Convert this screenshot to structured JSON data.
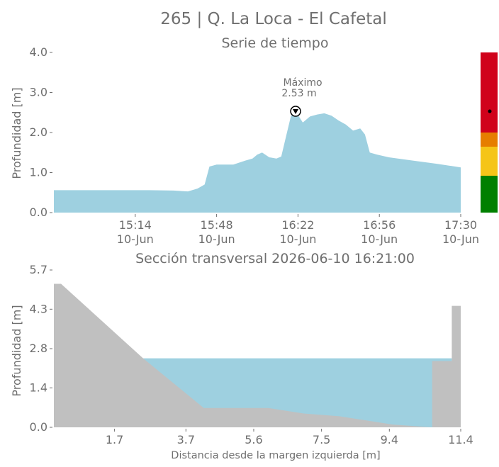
{
  "title": "265 | Q. La Loca - El Cafetal",
  "timeseries": {
    "subtitle": "Serie de tiempo",
    "ylabel": "Profundidad [m]",
    "yticks": [
      "0.0",
      "1.0",
      "2.0",
      "3.0",
      "4.0"
    ],
    "ytick_values": [
      0,
      1,
      2,
      3,
      4
    ],
    "xticks": [
      {
        "time": "15:14",
        "date": "10-Jun"
      },
      {
        "time": "15:48",
        "date": "10-Jun"
      },
      {
        "time": "16:22",
        "date": "10-Jun"
      },
      {
        "time": "16:56",
        "date": "10-Jun"
      },
      {
        "time": "17:30",
        "date": "10-Jun"
      }
    ],
    "max_label_line1": "Máximo",
    "max_label_line2": "2.53 m",
    "fill_color": "#9ed0e0"
  },
  "level_bar": {
    "colors": [
      "#008000",
      "#f5c518",
      "#e67e00",
      "#d0021b"
    ],
    "current_level": 2.53
  },
  "section": {
    "subtitle": "Sección transversal 2026-06-10 16:21:00",
    "ylabel": "Profundidad [m]",
    "xlabel": "Distancia desde la margen izquierda [m]",
    "yticks": [
      "0.0",
      "1.4",
      "2.8",
      "4.3",
      "5.7"
    ],
    "ytick_values": [
      0,
      1.43,
      2.85,
      4.28,
      5.7
    ],
    "xticks": [
      "1.7",
      "3.7",
      "5.6",
      "7.5",
      "9.4",
      "11.4"
    ],
    "xtick_values": [
      1.7,
      3.7,
      5.6,
      7.5,
      9.4,
      11.4
    ],
    "water_level": 2.5,
    "ground_color": "#c0c0c0",
    "water_color": "#9ed0e0"
  },
  "chart_data": [
    {
      "type": "area",
      "title": "Serie de tiempo",
      "ylabel": "Profundidad [m]",
      "ylim": [
        0,
        4
      ],
      "x_range": [
        "14:40",
        "17:30"
      ],
      "x": [
        "14:40",
        "14:50",
        "15:00",
        "15:10",
        "15:20",
        "15:30",
        "15:36",
        "15:40",
        "15:43",
        "15:45",
        "15:48",
        "15:55",
        "16:00",
        "16:03",
        "16:05",
        "16:07",
        "16:10",
        "16:13",
        "16:15",
        "16:17",
        "16:19",
        "16:21",
        "16:24",
        "16:27",
        "16:30",
        "16:33",
        "16:36",
        "16:39",
        "16:42",
        "16:45",
        "16:48",
        "16:50",
        "16:52",
        "16:55",
        "17:00",
        "17:10",
        "17:20",
        "17:30"
      ],
      "values": [
        0.56,
        0.56,
        0.56,
        0.56,
        0.56,
        0.55,
        0.53,
        0.6,
        0.7,
        1.15,
        1.2,
        1.2,
        1.3,
        1.35,
        1.45,
        1.5,
        1.38,
        1.35,
        1.4,
        1.9,
        2.4,
        2.53,
        2.25,
        2.4,
        2.45,
        2.48,
        2.42,
        2.3,
        2.2,
        2.05,
        2.1,
        1.95,
        1.5,
        1.45,
        1.38,
        1.3,
        1.22,
        1.13
      ],
      "annotation": {
        "label": "Máximo 2.53 m",
        "x": "16:21",
        "y": 2.53
      }
    },
    {
      "type": "area",
      "title": "Sección transversal 2026-06-10 16:21:00",
      "xlabel": "Distancia desde la margen izquierda [m]",
      "ylabel": "Profundidad [m]",
      "xlim": [
        0,
        11.4
      ],
      "ylim": [
        0,
        5.7
      ],
      "ground_profile": {
        "x": [
          0,
          0.2,
          2.5,
          4.2,
          6.0,
          7.0,
          8.0,
          9.5,
          10.6,
          10.6,
          11.15,
          11.15,
          11.4,
          11.4
        ],
        "y": [
          5.2,
          5.2,
          2.5,
          0.7,
          0.7,
          0.5,
          0.4,
          0.1,
          0.0,
          2.4,
          2.4,
          4.4,
          4.4,
          0.0
        ]
      },
      "water_surface": {
        "x_start": 2.5,
        "x_end": 11.15,
        "level": 2.5
      }
    }
  ]
}
